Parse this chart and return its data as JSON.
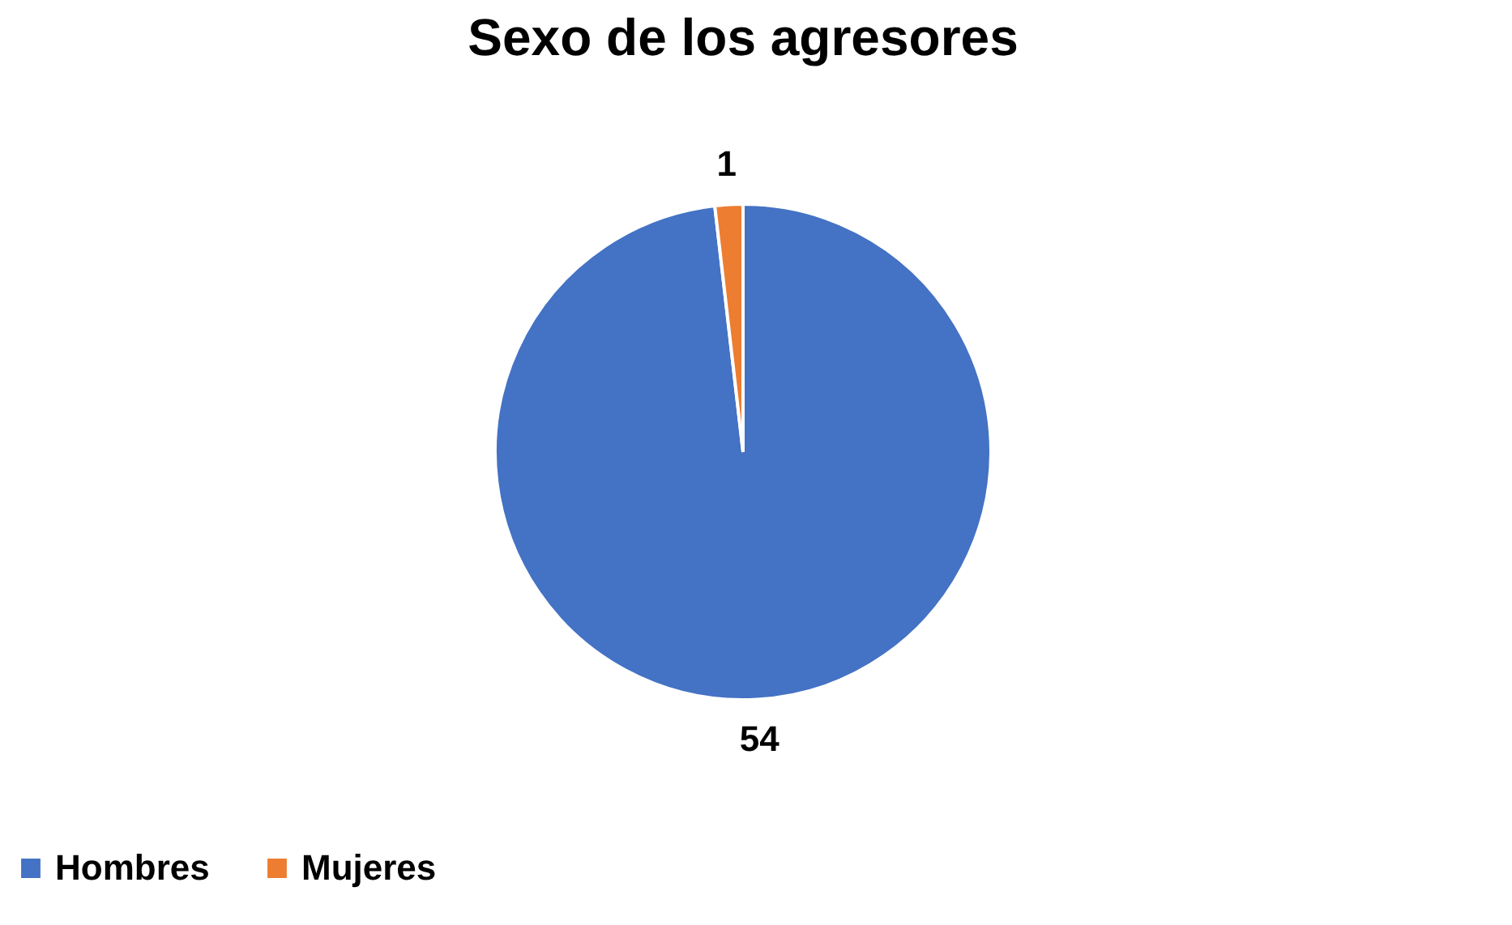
{
  "chart_data": {
    "type": "pie",
    "title": "Sexo de los agresores",
    "categories": [
      "Hombres",
      "Mujeres"
    ],
    "values": [
      54,
      1
    ],
    "colors": [
      "#4472c4",
      "#ed7d31"
    ],
    "data_labels": true,
    "legend": "bottom"
  }
}
